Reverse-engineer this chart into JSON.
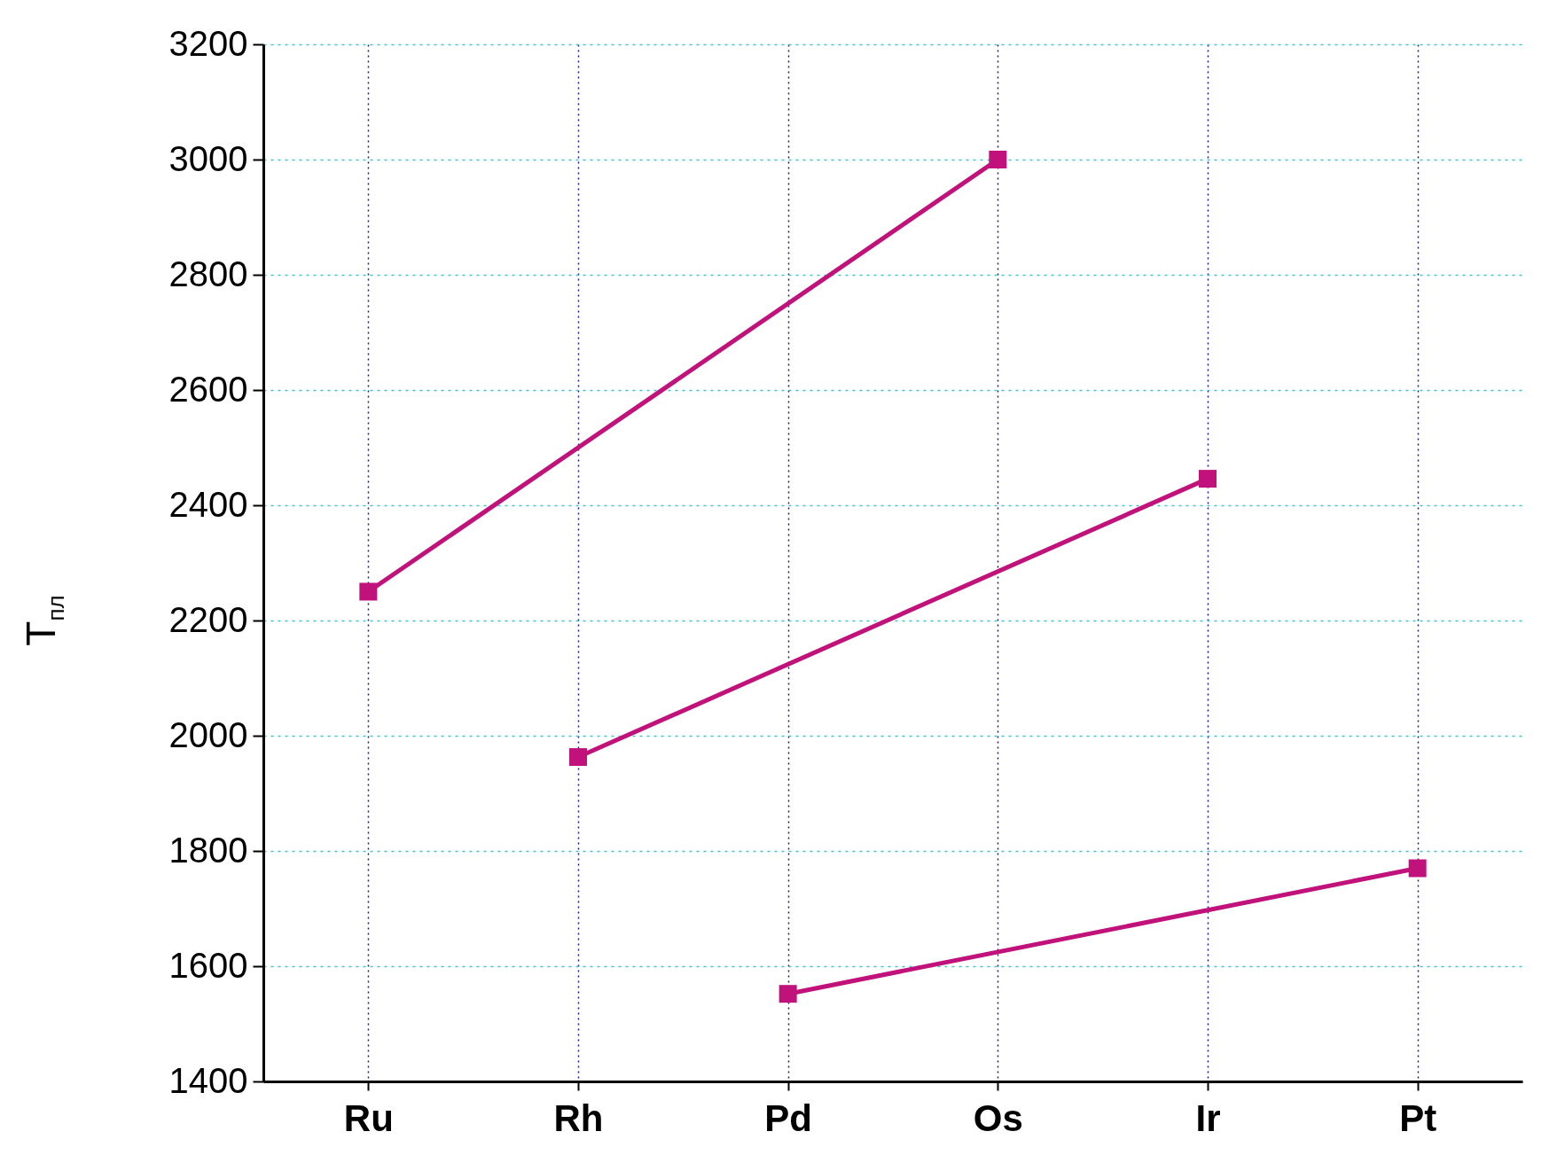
{
  "chart_data": {
    "type": "line",
    "ylabel": "T$_{пл}$",
    "categories": [
      "Ru",
      "Rh",
      "Pd",
      "Os",
      "Ir",
      "Pt"
    ],
    "series": [
      {
        "color": "#c0127a",
        "values": [
          2250,
          null,
          null,
          3000,
          null,
          null
        ]
      },
      {
        "color": "#c0127a",
        "values": [
          null,
          1963,
          null,
          null,
          2446,
          null
        ]
      },
      {
        "color": "#c0127a",
        "values": [
          null,
          null,
          1552,
          null,
          null,
          1770
        ]
      }
    ],
    "ylim": [
      1400,
      3200
    ],
    "yticks": [
      1400,
      1600,
      1800,
      2000,
      2200,
      2400,
      2600,
      2800,
      3000,
      3200
    ],
    "grid": true,
    "marker": "square",
    "line_style": "solid"
  }
}
